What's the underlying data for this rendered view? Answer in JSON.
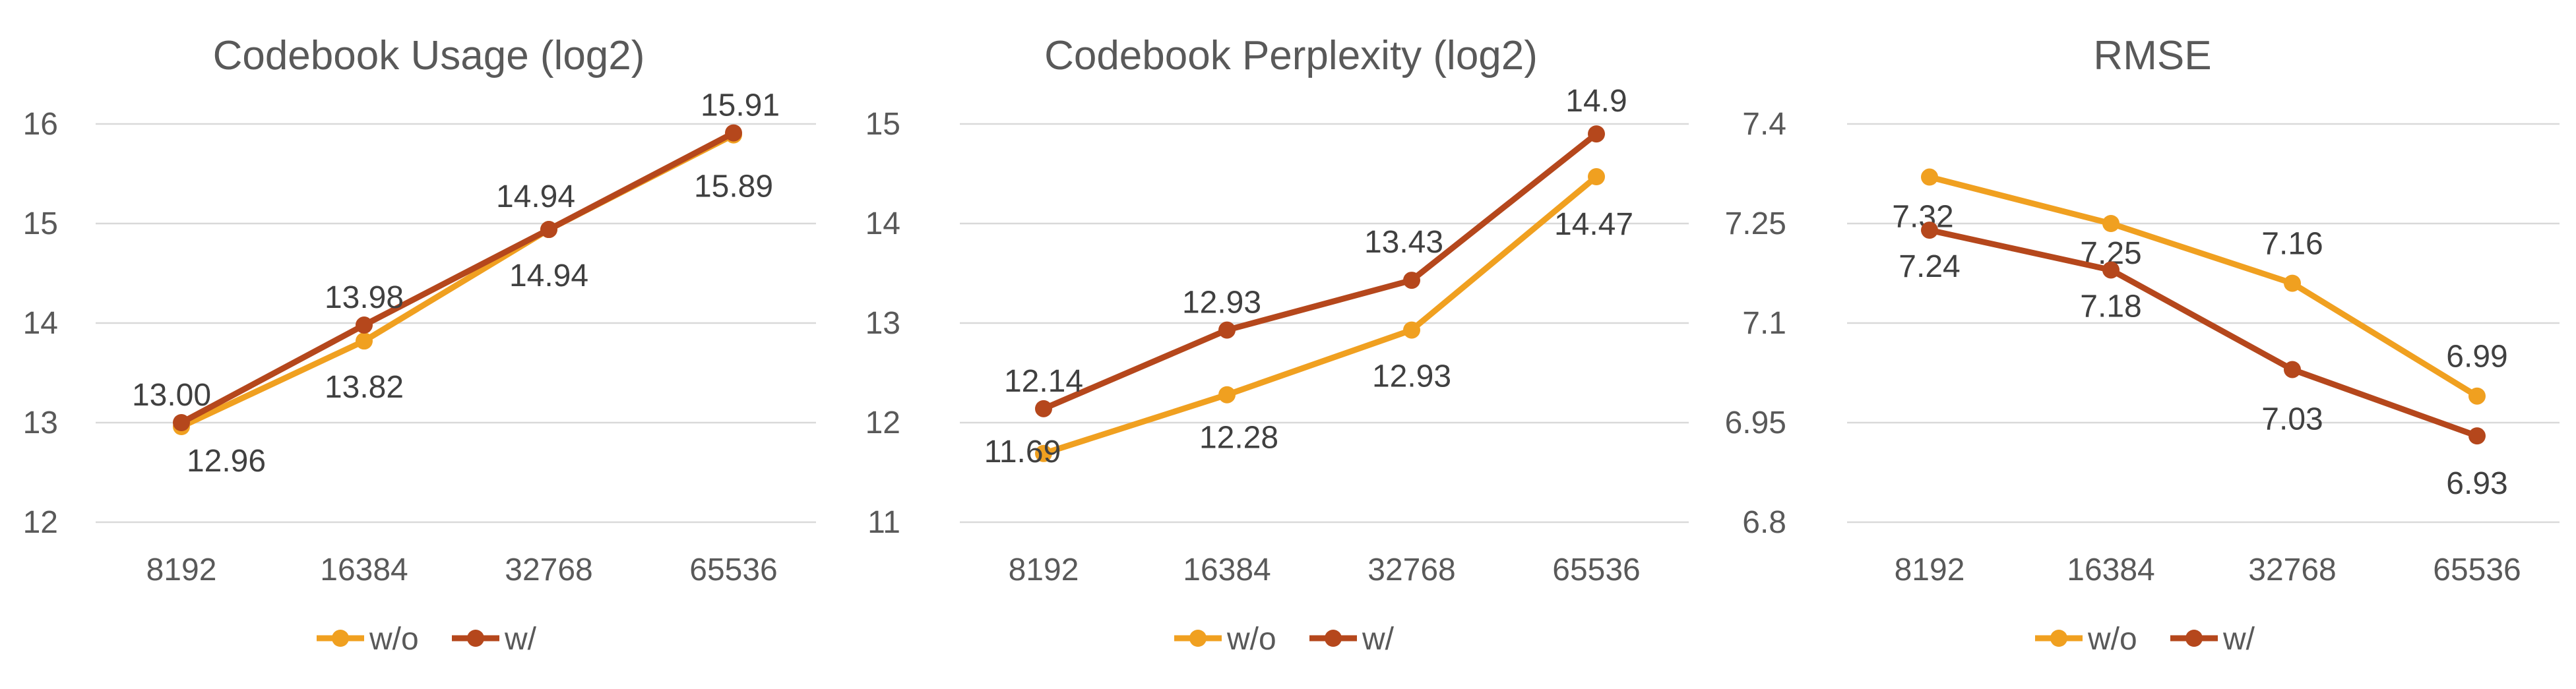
{
  "colors": {
    "wo": "#f0a020",
    "w": "#b5471c"
  },
  "chart_data": [
    {
      "type": "line",
      "title": "Codebook Usage (log2)",
      "categories": [
        "8192",
        "16384",
        "32768",
        "65536"
      ],
      "ylim": [
        12,
        16
      ],
      "yticks": [
        "12",
        "13",
        "14",
        "15",
        "16"
      ],
      "grid": true,
      "legend": "bottom",
      "series": [
        {
          "name": "w/o",
          "values": [
            12.96,
            13.82,
            14.94,
            15.89
          ],
          "labels": [
            "12.96",
            "13.82",
            "14.94",
            "15.89"
          ]
        },
        {
          "name": "w/",
          "values": [
            13.0,
            13.98,
            14.94,
            15.91
          ],
          "labels": [
            "13.00",
            "13.98",
            "14.94",
            "15.91"
          ]
        }
      ]
    },
    {
      "type": "line",
      "title": "Codebook Perplexity (log2)",
      "categories": [
        "8192",
        "16384",
        "32768",
        "65536"
      ],
      "ylim": [
        11,
        15
      ],
      "yticks": [
        "11",
        "12",
        "13",
        "14",
        "15"
      ],
      "grid": true,
      "legend": "bottom",
      "series": [
        {
          "name": "w/o",
          "values": [
            11.69,
            12.28,
            12.93,
            14.47
          ],
          "labels": [
            "11.69",
            "12.28",
            "12.93",
            "14.47"
          ]
        },
        {
          "name": "w/",
          "values": [
            12.14,
            12.93,
            13.43,
            14.9
          ],
          "labels": [
            "12.14",
            "12.93",
            "13.43",
            "14.9"
          ]
        }
      ]
    },
    {
      "type": "line",
      "title": "RMSE",
      "categories": [
        "8192",
        "16384",
        "32768",
        "65536"
      ],
      "ylim": [
        6.8,
        7.4
      ],
      "yticks": [
        "6.8",
        "6.95",
        "7.1",
        "7.25",
        "7.4"
      ],
      "grid": true,
      "legend": "bottom",
      "series": [
        {
          "name": "w/o",
          "values": [
            7.32,
            7.25,
            7.16,
            6.99
          ],
          "labels": [
            "7.32",
            "7.25",
            "7.16",
            "6.99"
          ]
        },
        {
          "name": "w/",
          "values": [
            7.24,
            7.18,
            7.03,
            6.93
          ],
          "labels": [
            "7.24",
            "7.18",
            "7.03",
            "6.93"
          ]
        }
      ]
    }
  ]
}
